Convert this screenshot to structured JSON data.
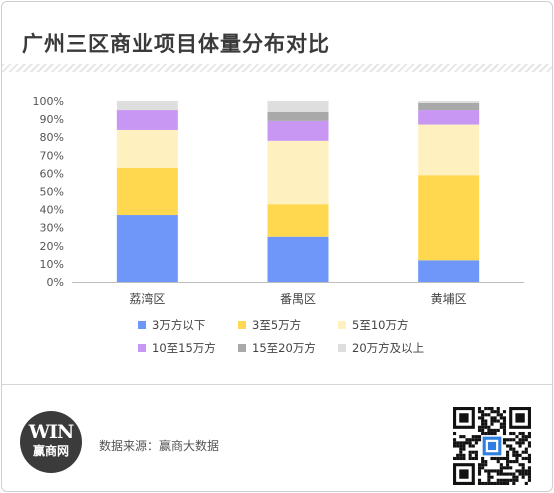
{
  "title": "广州三区商业项目体量分布对比",
  "footer": {
    "logo_mark": "WIN",
    "logo_text": "赢商网",
    "source": "数据来源：赢商大数据",
    "qr_icon_name": "qr-code-icon"
  },
  "colors": {
    "3万方以下": "#6f97fa",
    "3至5万方": "#ffd84f",
    "5至10万方": "#fff1bf",
    "10至15万方": "#c897f4",
    "15至20万方": "#a9a9a9",
    "20万方及以上": "#dedede"
  },
  "chart_data": {
    "type": "bar",
    "stacked": true,
    "categories": [
      "荔湾区",
      "番禺区",
      "黄埔区"
    ],
    "ylim": [
      0,
      100
    ],
    "yticks": [
      "0%",
      "10%",
      "20%",
      "30%",
      "40%",
      "50%",
      "60%",
      "70%",
      "80%",
      "90%",
      "100%"
    ],
    "grid": false,
    "legend_position": "bottom",
    "series": [
      {
        "name": "3万方以下",
        "values": [
          37,
          25,
          12
        ]
      },
      {
        "name": "3至5万方",
        "values": [
          26,
          18,
          47
        ]
      },
      {
        "name": "5至10万方",
        "values": [
          21,
          35,
          28
        ]
      },
      {
        "name": "10至15万方",
        "values": [
          11,
          11,
          8
        ]
      },
      {
        "name": "15至20万方",
        "values": [
          0,
          5,
          4
        ]
      },
      {
        "name": "20万方及以上",
        "values": [
          5,
          6,
          1
        ]
      }
    ]
  }
}
